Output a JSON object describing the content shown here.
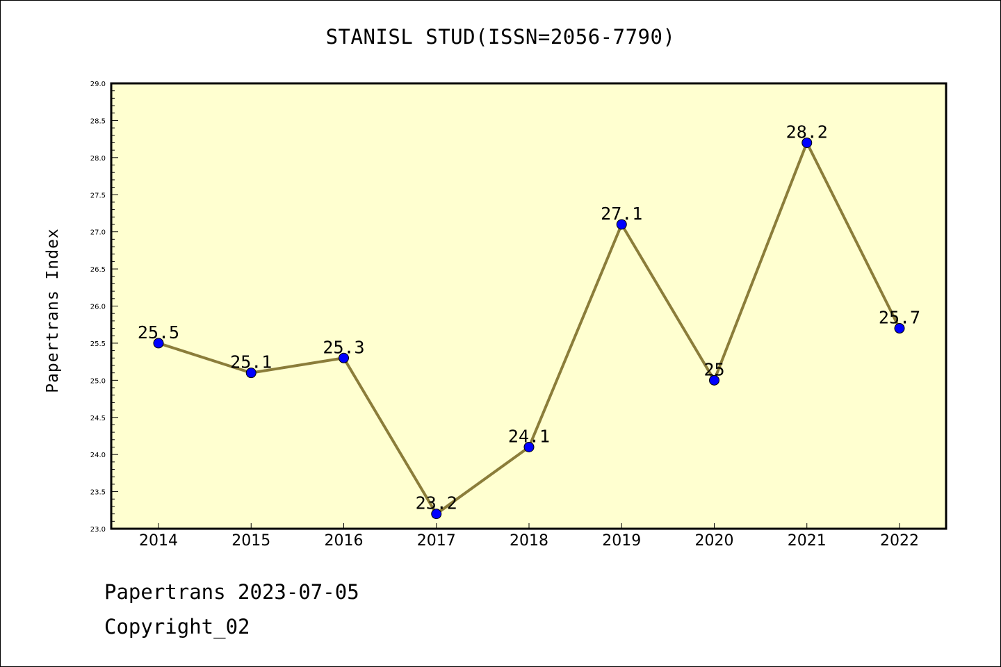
{
  "title": "STANISL STUD(ISSN=2056-7790)",
  "footer": {
    "line1": "Papertrans 2023-07-05",
    "line2": "Copyright_02"
  },
  "chart_data": {
    "type": "line",
    "title": "STANISL STUD(ISSN=2056-7790)",
    "xlabel": "",
    "ylabel": "Papertrans Index",
    "categories": [
      "2014",
      "2015",
      "2016",
      "2017",
      "2018",
      "2019",
      "2020",
      "2021",
      "2022"
    ],
    "values": [
      25.5,
      25.1,
      25.3,
      23.2,
      24.1,
      27.1,
      25,
      28.2,
      25.7
    ],
    "data_labels": [
      "25.5",
      "25.1",
      "25.3",
      "23.2",
      "24.1",
      "27.1",
      "25",
      "28.2",
      "25.7"
    ],
    "ylim": [
      23.0,
      29.0
    ],
    "yticks": [
      "23.0",
      "23.5",
      "24.0",
      "24.5",
      "25.0",
      "25.5",
      "26.0",
      "26.5",
      "27.0",
      "27.5",
      "28.0",
      "28.5",
      "29.0"
    ],
    "grid": false,
    "legend": "none",
    "colors": {
      "plot_background": "#ffffd0",
      "line": "#8b7d3a",
      "marker": "#0000ff"
    }
  }
}
